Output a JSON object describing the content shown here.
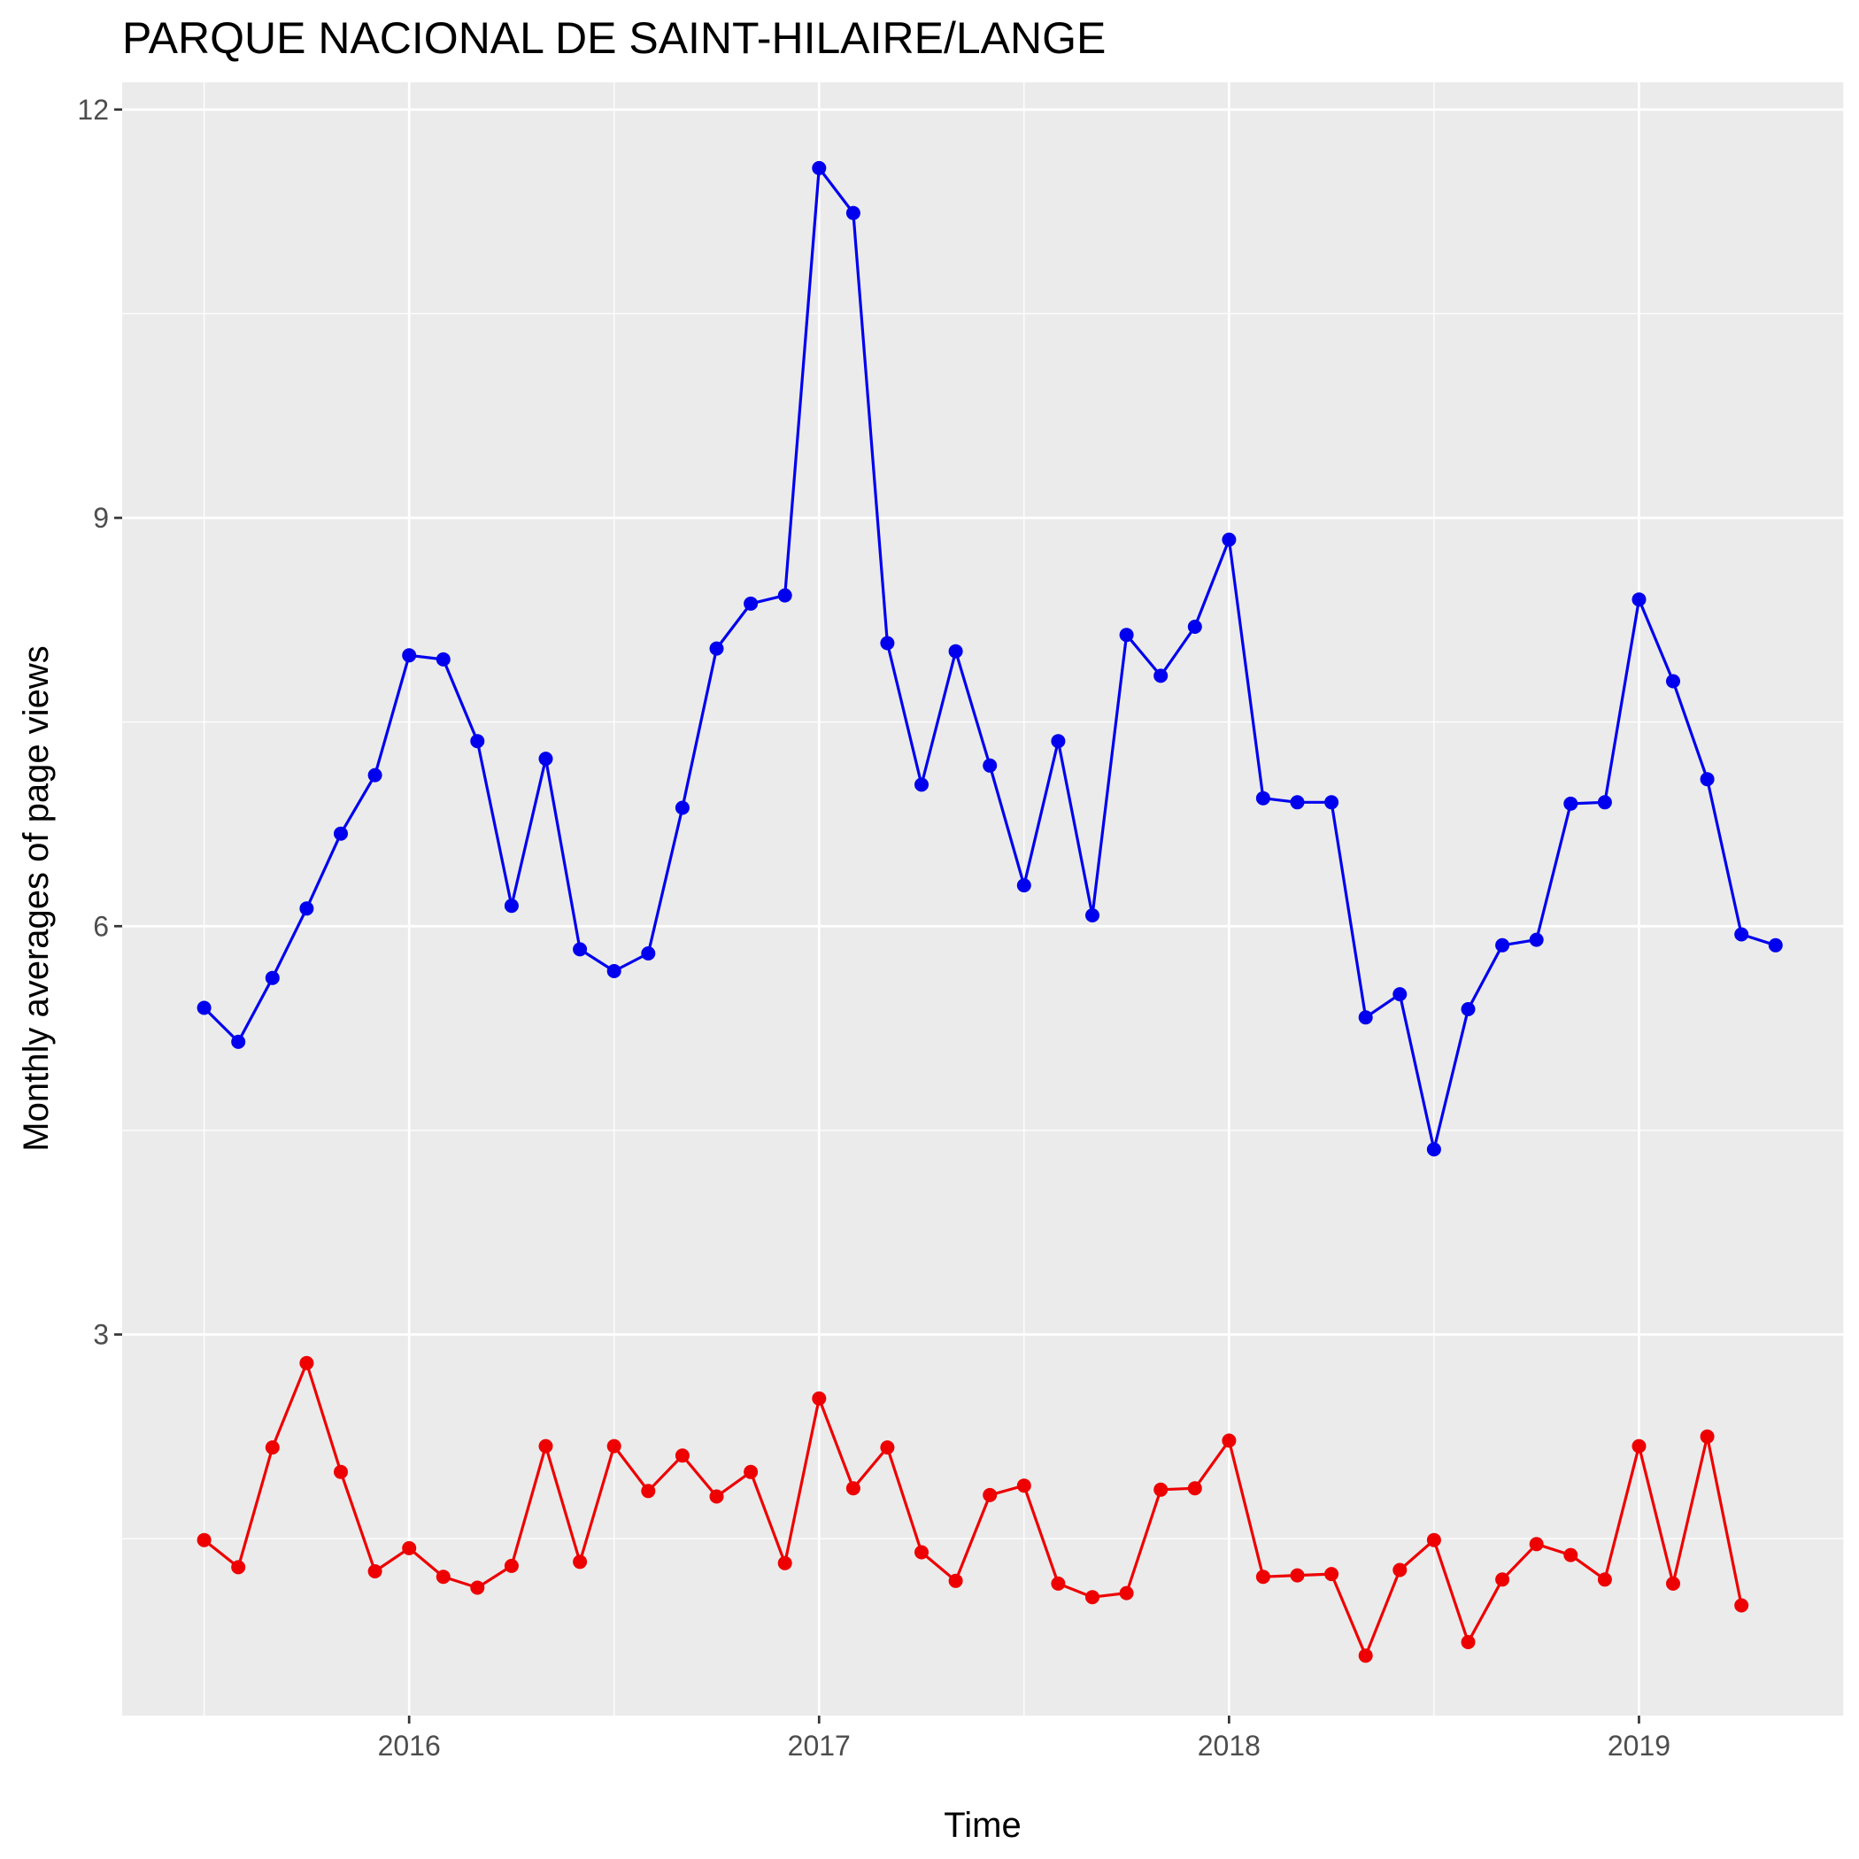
{
  "chart_data": {
    "type": "line",
    "title": "PARQUE NACIONAL DE SAINT-HILAIRE/LANGE",
    "xlabel": "Time",
    "ylabel": "Monthly averages of page views",
    "x_ticks": [
      {
        "label": "2016",
        "value": 2016
      },
      {
        "label": "2017",
        "value": 2017
      },
      {
        "label": "2018",
        "value": 2018
      },
      {
        "label": "2019",
        "value": 2019
      }
    ],
    "y_ticks": [
      3,
      6,
      9,
      12
    ],
    "xlim": [
      2015.3,
      2019.5
    ],
    "ylim": [
      0.2,
      12.2
    ],
    "grid": true,
    "panel_color": "#ebebeb",
    "x_start": "2015-07",
    "x_step": "1 month",
    "series": [
      {
        "color": "#0000ee",
        "values": [
          5.4,
          5.15,
          5.62,
          6.13,
          6.68,
          7.11,
          7.99,
          7.96,
          7.36,
          6.15,
          7.23,
          5.83,
          5.67,
          5.8,
          6.87,
          8.04,
          8.37,
          8.43,
          11.57,
          11.24,
          8.08,
          7.04,
          8.02,
          7.18,
          6.3,
          7.36,
          6.08,
          8.14,
          7.84,
          8.2,
          8.84,
          6.94,
          6.91,
          6.91,
          5.33,
          5.5,
          4.36,
          5.39,
          5.86,
          5.9,
          6.9,
          6.91,
          8.4,
          7.8,
          7.08,
          5.94,
          5.86
        ],
        "line_color": "#0000ee"
      },
      {
        "color": "#ee0000",
        "values": [
          1.49,
          1.29,
          2.17,
          2.79,
          1.99,
          1.26,
          1.43,
          1.22,
          1.14,
          1.3,
          2.18,
          1.33,
          2.18,
          1.85,
          2.11,
          1.81,
          1.99,
          1.32,
          2.53,
          1.87,
          2.17,
          1.4,
          1.19,
          1.82,
          1.89,
          1.17,
          1.07,
          1.1,
          1.86,
          1.87,
          2.22,
          1.22,
          1.23,
          1.24,
          0.64,
          1.27,
          1.49,
          0.74,
          1.2,
          1.46,
          1.38,
          1.2,
          2.18,
          1.17,
          2.25,
          1.01
        ],
        "line_color": "#ee0000"
      }
    ]
  }
}
